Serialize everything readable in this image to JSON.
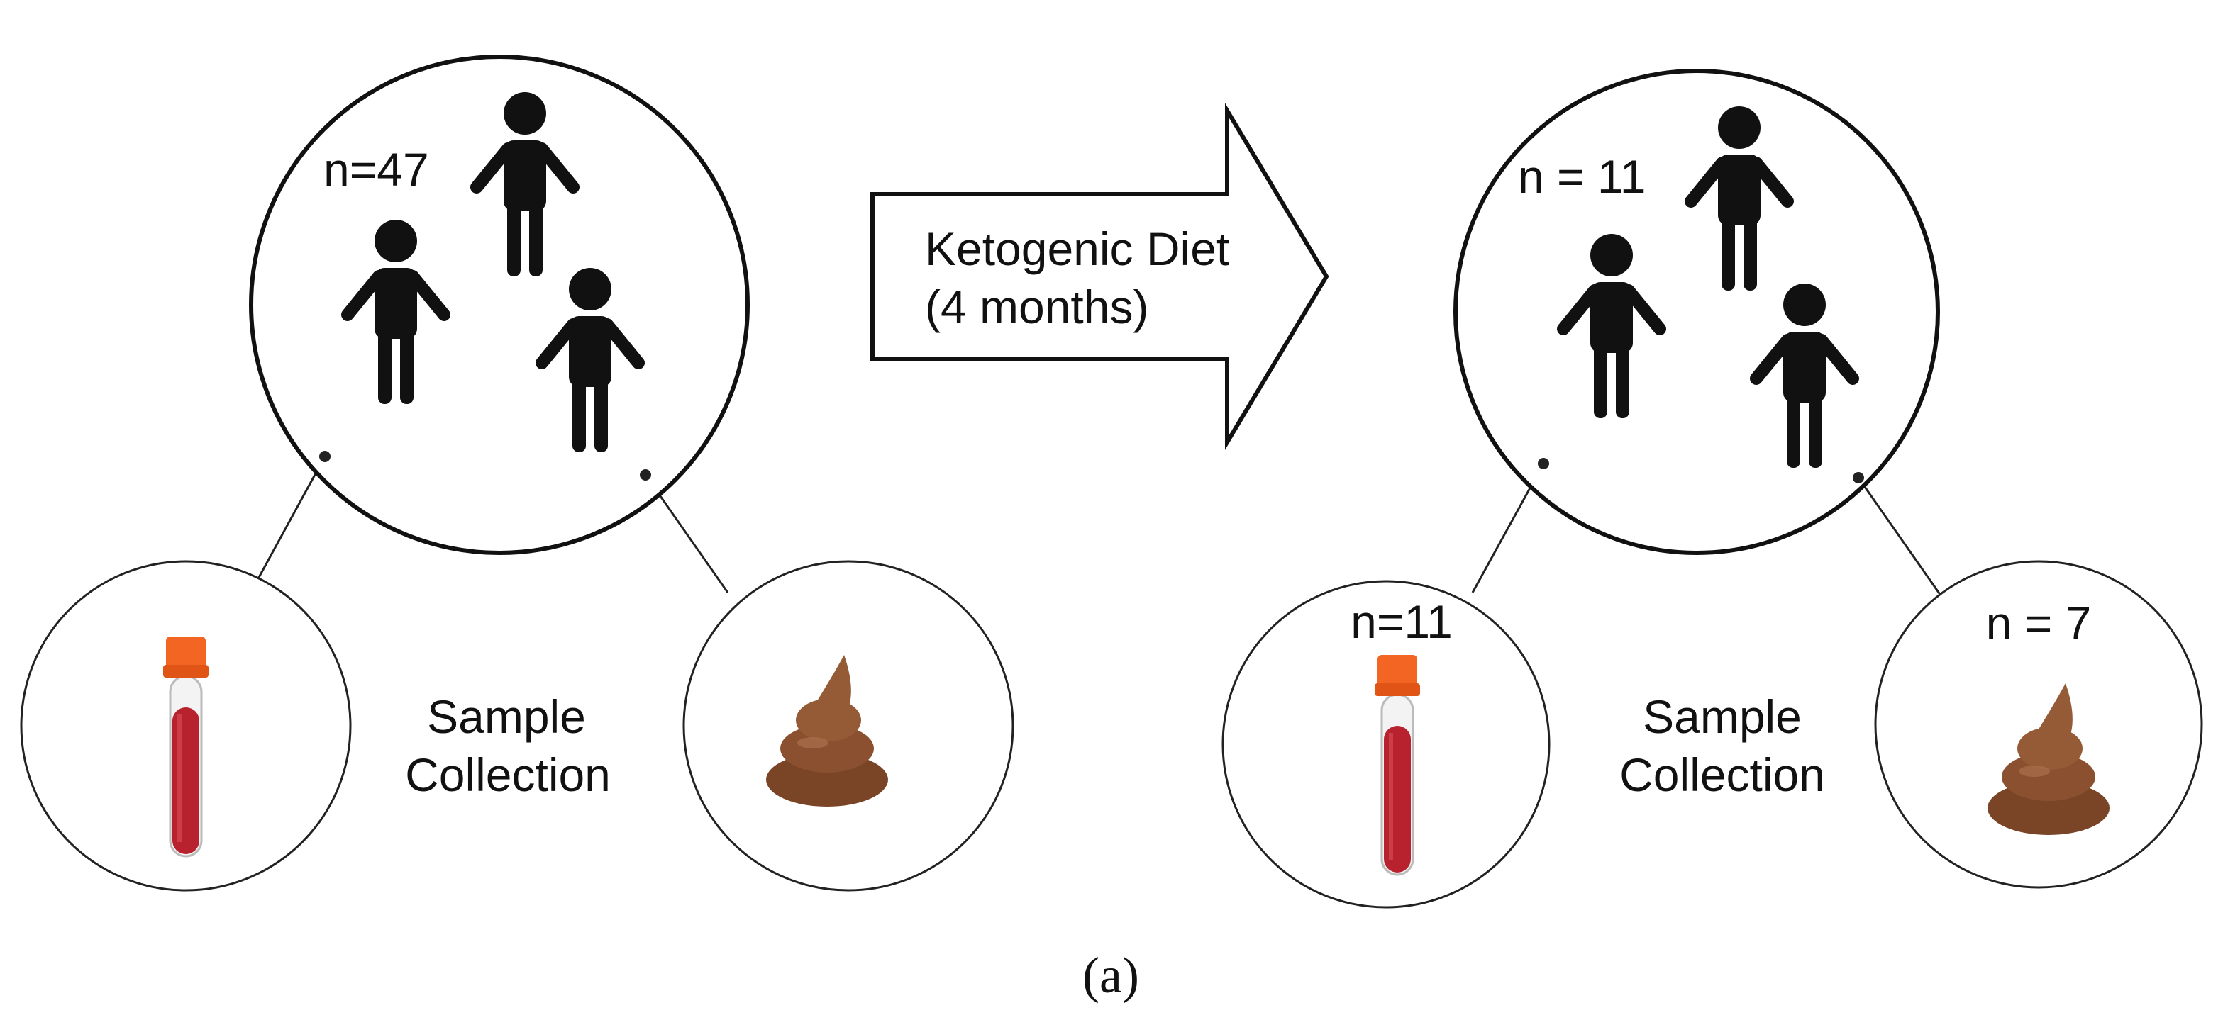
{
  "arrow": {
    "label": [
      "Ketogenic Diet",
      "(4 months)"
    ]
  },
  "panels": [
    {
      "group_label": "n=47",
      "collection_label": [
        "Sample",
        "Collection"
      ]
    },
    {
      "group_label": "n = 11",
      "blood_label": "n=11",
      "stool_label": "n = 7",
      "collection_label": [
        "Sample",
        "Collection"
      ]
    }
  ],
  "caption": "(a)"
}
